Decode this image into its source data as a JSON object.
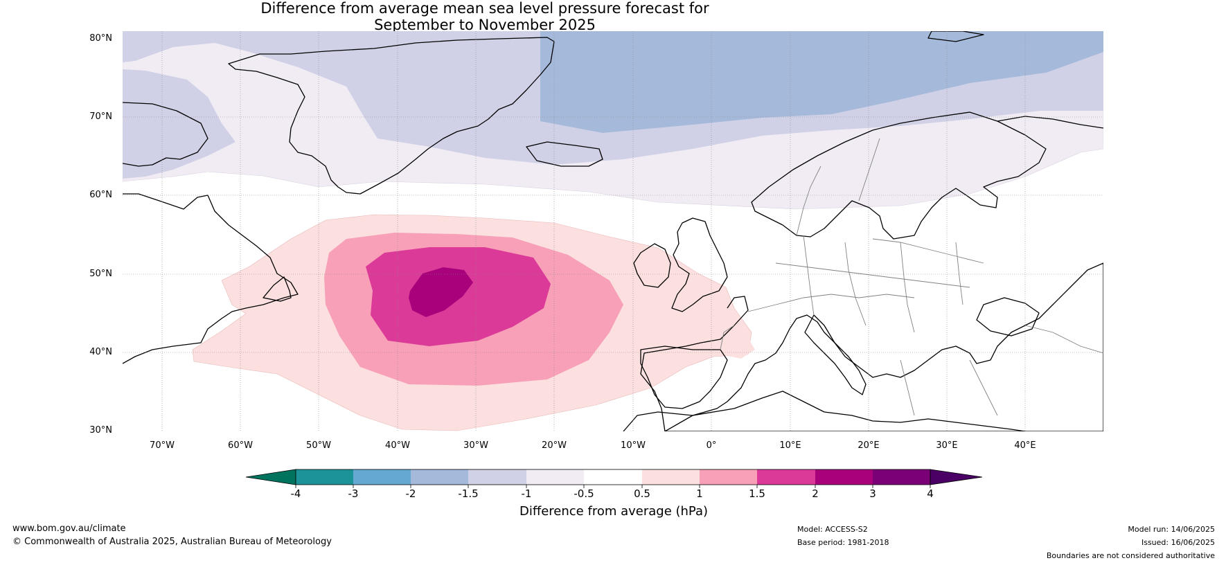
{
  "title": {
    "line1": "Difference from average mean sea level pressure forecast for",
    "line2": "September to November 2025"
  },
  "map": {
    "lat_labels": [
      "80°N",
      "70°N",
      "60°N",
      "50°N",
      "40°N",
      "30°N"
    ],
    "lon_labels": [
      "70°W",
      "60°W",
      "50°W",
      "40°W",
      "30°W",
      "20°W",
      "10°W",
      "0°",
      "10°E",
      "20°E",
      "30°E",
      "40°E"
    ],
    "colors": {
      "ocean_neutral": "#ffffff",
      "pos_05_1": "#fbe0df",
      "pos_1_15": "#f8a0b8",
      "pos_15_2": "#dc3a98",
      "pos_2_3": "#a9007c",
      "neg_05_1": "#f1ecf4",
      "neg_1_15": "#d0d1e6",
      "neg_15_2": "#a5b9db",
      "coast": "#000000",
      "border": "#808080",
      "grid": "#888888"
    }
  },
  "colorbar": {
    "labels": [
      "-4",
      "-3",
      "-2",
      "-1.5",
      "-1",
      "-0.5",
      "0.5",
      "1",
      "1.5",
      "2",
      "3",
      "4"
    ],
    "colors": [
      "#00735e",
      "#1b9399",
      "#65a8d1",
      "#a5b9db",
      "#d0d1e6",
      "#f1ecf4",
      "#ffffff",
      "#fbe0df",
      "#f8a0b8",
      "#dc3a98",
      "#a9007c",
      "#7b0077",
      "#4b0065"
    ],
    "title": "Difference from average (hPa)"
  },
  "footer": {
    "url": "www.bom.gov.au/climate",
    "copyright": "© Commonwealth of Australia 2025, Australian Bureau of Meteorology",
    "model": "Model: ACCESS-S2",
    "base_period": "Base period: 1981-2018",
    "model_run": "Model run: 14/06/2025",
    "issued": "Issued: 16/06/2025",
    "disclaimer": "Boundaries are not considered authoritative"
  }
}
